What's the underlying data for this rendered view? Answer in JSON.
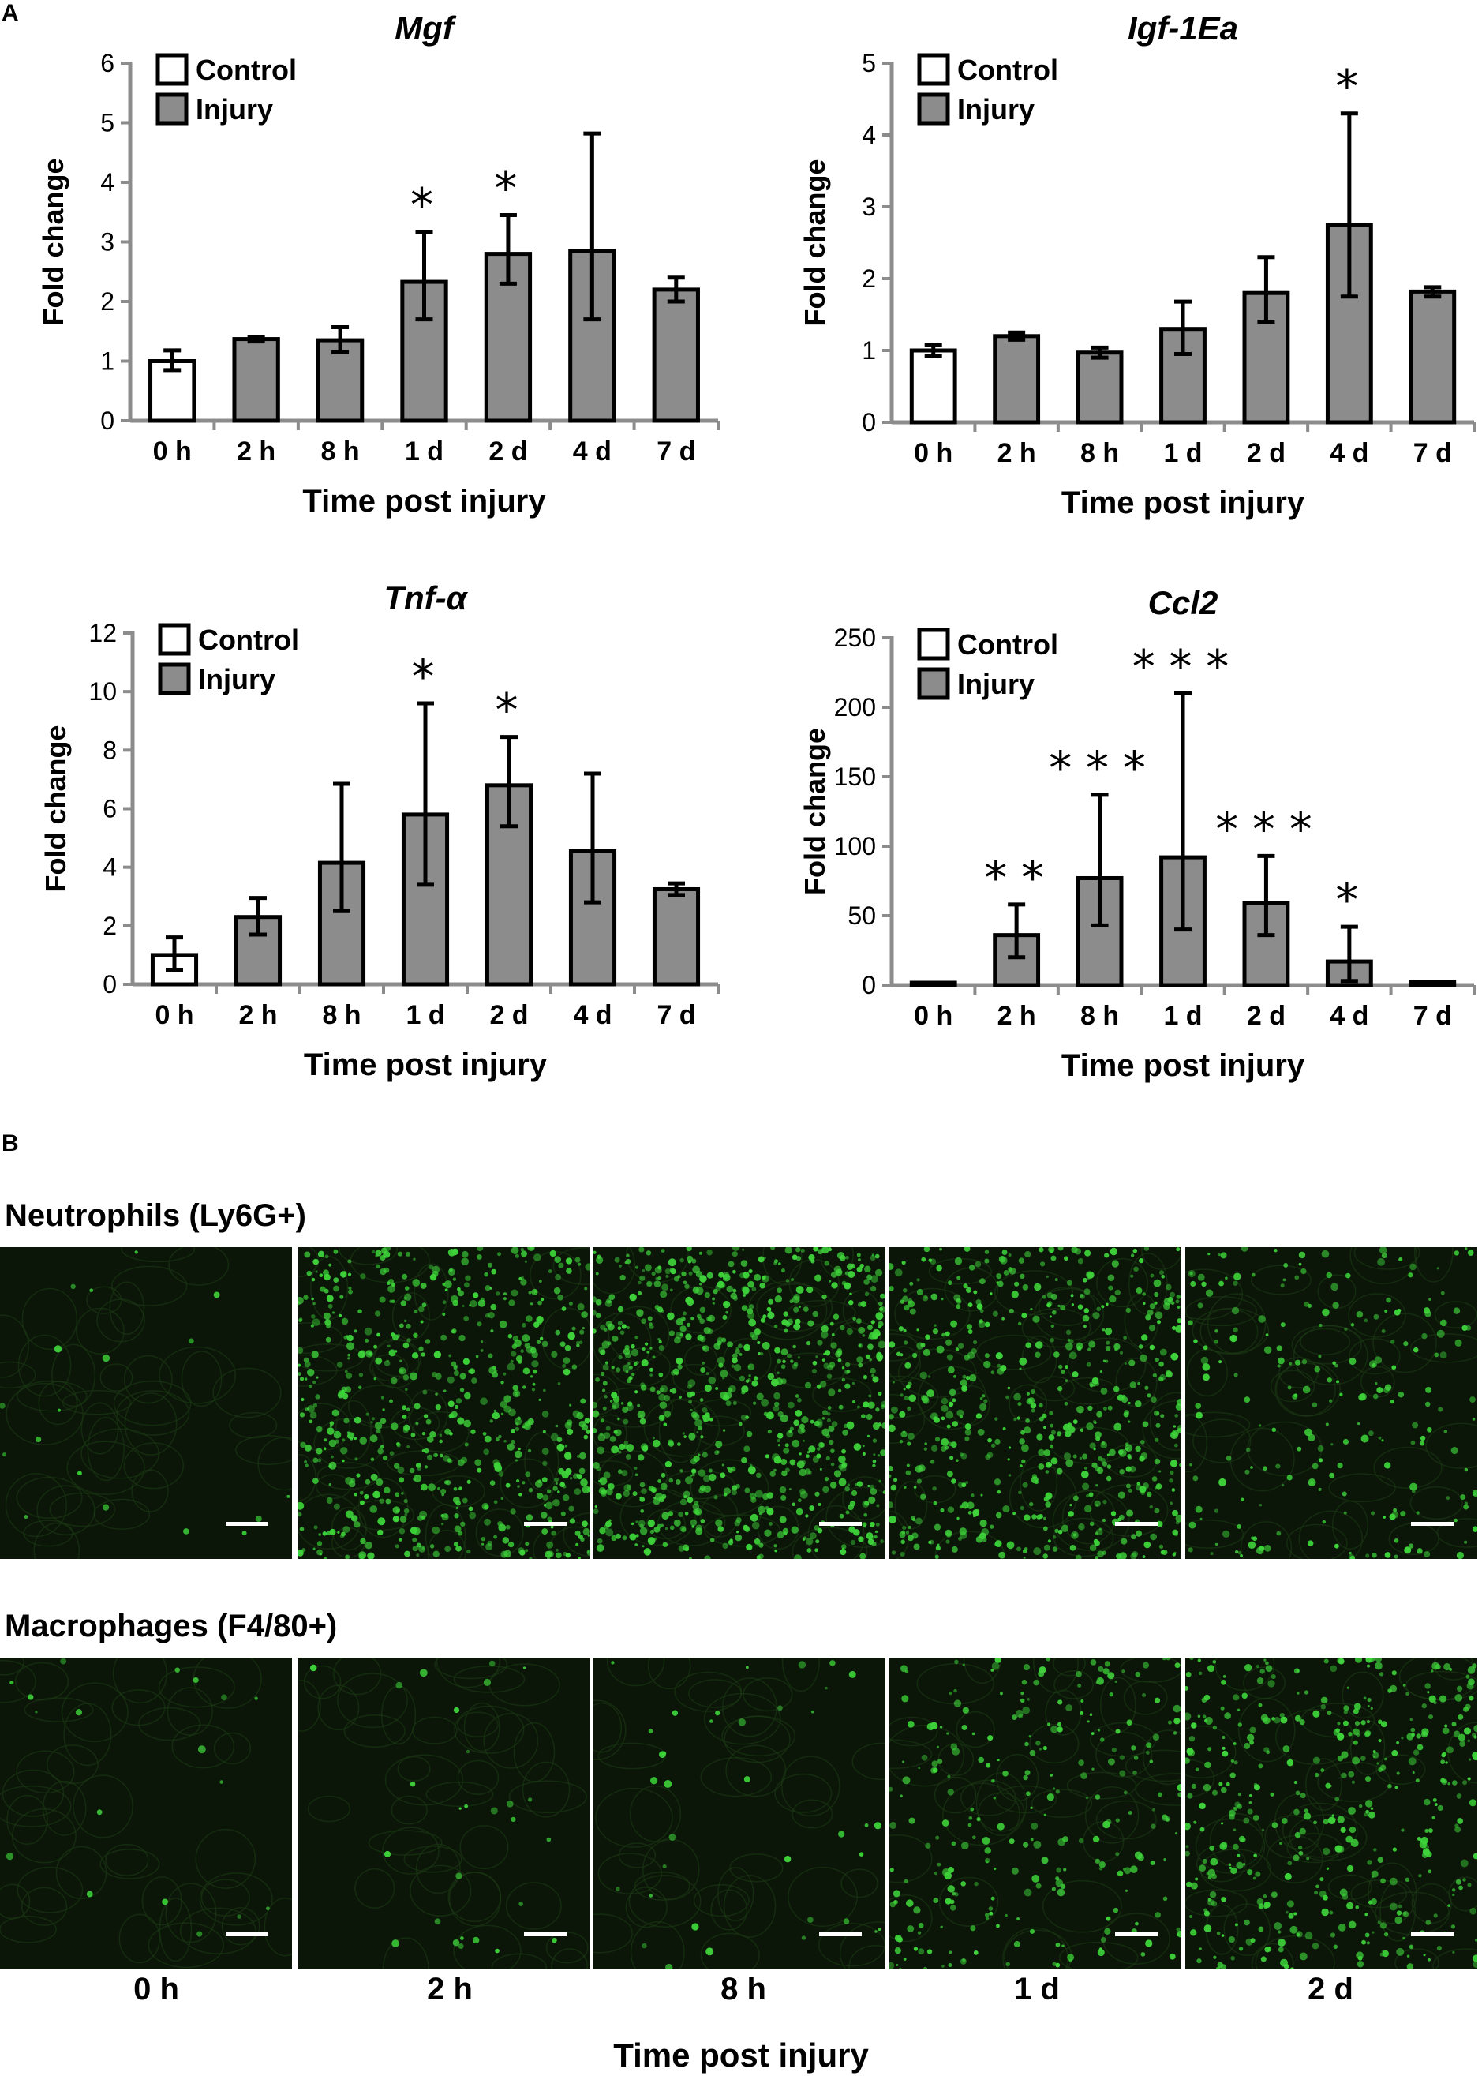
{
  "panel_a_label": "A",
  "panel_b_label": "B",
  "chart_data": [
    {
      "type": "bar",
      "title": "Mgf",
      "xlabel": "Time post injury",
      "ylabel": "Fold change",
      "ylim": [
        0,
        6
      ],
      "yticks": [
        0,
        1,
        2,
        3,
        4,
        5,
        6
      ],
      "categories": [
        "0 h",
        "2 h",
        "8 h",
        "1 d",
        "2 d",
        "4 d",
        "7 d"
      ],
      "legend": [
        "Control",
        "Injury"
      ],
      "legend_position": "top-left",
      "groups": [
        "Control",
        "Injury",
        "Injury",
        "Injury",
        "Injury",
        "Injury",
        "Injury"
      ],
      "values": [
        1.0,
        1.37,
        1.35,
        2.33,
        2.8,
        2.85,
        2.2
      ],
      "err_low": [
        0.85,
        1.33,
        1.15,
        1.7,
        2.3,
        1.7,
        2.0
      ],
      "err_high": [
        1.18,
        1.4,
        1.57,
        3.17,
        3.45,
        4.82,
        2.4
      ],
      "significance": [
        "",
        "",
        "",
        "*",
        "*",
        "",
        ""
      ]
    },
    {
      "type": "bar",
      "title": "Igf-1Ea",
      "xlabel": "Time post injury",
      "ylabel": "Fold change",
      "ylim": [
        0,
        5
      ],
      "yticks": [
        0,
        1,
        2,
        3,
        4,
        5
      ],
      "categories": [
        "0 h",
        "2 h",
        "8 h",
        "1 d",
        "2 d",
        "4 d",
        "7 d"
      ],
      "legend": [
        "Control",
        "Injury"
      ],
      "legend_position": "top-left",
      "groups": [
        "Control",
        "Injury",
        "Injury",
        "Injury",
        "Injury",
        "Injury",
        "Injury"
      ],
      "values": [
        1.0,
        1.2,
        0.97,
        1.3,
        1.8,
        2.75,
        1.82
      ],
      "err_low": [
        0.92,
        1.15,
        0.9,
        0.95,
        1.4,
        1.75,
        1.75
      ],
      "err_high": [
        1.08,
        1.25,
        1.04,
        1.68,
        2.3,
        4.3,
        1.88
      ],
      "significance": [
        "",
        "",
        "",
        "",
        "",
        "*",
        ""
      ]
    },
    {
      "type": "bar",
      "title": "Tnf-α",
      "xlabel": "Time post injury",
      "ylabel": "Fold change",
      "ylim": [
        0,
        12
      ],
      "yticks": [
        0,
        2,
        4,
        6,
        8,
        10,
        12
      ],
      "categories": [
        "0 h",
        "2 h",
        "8 h",
        "1 d",
        "2 d",
        "4 d",
        "7 d"
      ],
      "legend": [
        "Control",
        "Injury"
      ],
      "legend_position": "top-left",
      "groups": [
        "Control",
        "Injury",
        "Injury",
        "Injury",
        "Injury",
        "Injury",
        "Injury"
      ],
      "values": [
        1.0,
        2.3,
        4.15,
        5.8,
        6.8,
        4.55,
        3.25
      ],
      "err_low": [
        0.5,
        1.7,
        2.5,
        3.4,
        5.4,
        2.8,
        3.05
      ],
      "err_high": [
        1.6,
        2.95,
        6.85,
        9.6,
        8.45,
        7.2,
        3.45
      ],
      "significance": [
        "",
        "",
        "",
        "*",
        "*",
        "",
        ""
      ]
    },
    {
      "type": "bar",
      "title": "Ccl2",
      "xlabel": "Time post injury",
      "ylabel": "Fold change",
      "ylim": [
        0,
        250
      ],
      "yticks": [
        0,
        50,
        100,
        150,
        200,
        250
      ],
      "categories": [
        "0 h",
        "2 h",
        "8 h",
        "1 d",
        "2 d",
        "4 d",
        "7 d"
      ],
      "legend": [
        "Control",
        "Injury"
      ],
      "legend_position": "top-left",
      "groups": [
        "Control",
        "Injury",
        "Injury",
        "Injury",
        "Injury",
        "Injury",
        "Injury"
      ],
      "values": [
        1.0,
        36,
        77,
        92,
        59,
        17,
        2.5
      ],
      "err_low": [
        1.0,
        20,
        43,
        40,
        36,
        3,
        2.5
      ],
      "err_high": [
        1.0,
        58,
        137,
        210,
        93,
        42,
        2.5
      ],
      "significance": [
        "",
        "**",
        "***",
        "***",
        "***",
        "*",
        ""
      ]
    }
  ],
  "micrographs": {
    "rows": [
      {
        "title": "Neutrophils (Ly6G+)",
        "intensity": [
          0.02,
          0.75,
          0.95,
          0.7,
          0.25
        ]
      },
      {
        "title": "Macrophages (F4/80+)",
        "intensity": [
          0.02,
          0.03,
          0.04,
          0.3,
          0.5
        ]
      }
    ],
    "time_labels": [
      "0 h",
      "2 h",
      "8 h",
      "1 d",
      "2 d"
    ],
    "xlabel": "Time post injury",
    "colors": {
      "background": "#050a04",
      "signal": "#3ed43a",
      "scale_bar": "#ffffff"
    }
  },
  "colors": {
    "control": "#ffffff",
    "injury": "#8c8c8c",
    "axis": "#8c8c8c",
    "outline": "#000000"
  }
}
